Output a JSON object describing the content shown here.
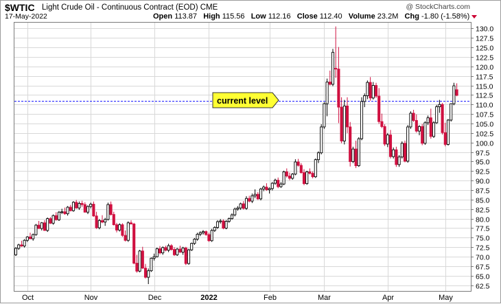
{
  "header": {
    "symbol": "$WTIC",
    "description": "Light Crude Oil - Continuous Contract (EOD)",
    "exchange": "CME",
    "date": "17-May-2022",
    "copyright": "@ StockCharts.com",
    "open_label": "Open",
    "open": "113.87",
    "high_label": "High",
    "high": "115.56",
    "low_label": "Low",
    "low": "112.16",
    "close_label": "Close",
    "close": "112.40",
    "volume_label": "Volume",
    "volume": "23.2M",
    "chg_label": "Chg",
    "chg": "-1.80 (-1.58%)",
    "chg_icon": "down-triangle-icon"
  },
  "annotation": {
    "label": "current level",
    "value": 111
  },
  "colors": {
    "up": "#000000",
    "down": "#d01040",
    "reference_line": "#1a1aff",
    "callout_fill": "#ffff33",
    "grid": "#d8d8d8",
    "chg_down": "#cc0033"
  },
  "chart_data": {
    "type": "candlestick",
    "title": "Light Crude Oil - Continuous Contract (EOD)",
    "ylim": [
      61,
      131.5
    ],
    "y_axis_position": "right",
    "y_ticks": [
      62.5,
      65,
      67.5,
      70,
      72.5,
      75,
      77.5,
      80,
      82.5,
      85,
      87.5,
      90,
      92.5,
      95,
      97.5,
      100,
      102.5,
      105,
      107.5,
      110,
      112.5,
      115,
      117.5,
      120,
      122.5,
      125,
      127.5,
      130
    ],
    "x_labels": [
      {
        "label": "Oct",
        "index": 4
      },
      {
        "label": "Nov",
        "index": 26
      },
      {
        "label": "Dec",
        "index": 48
      },
      {
        "label": "2022",
        "index": 67
      },
      {
        "label": "Feb",
        "index": 88
      },
      {
        "label": "Mar",
        "index": 107
      },
      {
        "label": "Apr",
        "index": 129
      },
      {
        "label": "May",
        "index": 149
      }
    ],
    "grid": true,
    "reference_line": 111,
    "candles": [
      [
        70.5,
        72.5,
        70.2,
        72.2
      ],
      [
        72.2,
        73.4,
        71.8,
        73.1
      ],
      [
        73.1,
        74.2,
        72.6,
        72.8
      ],
      [
        72.8,
        74.6,
        72.4,
        74.3
      ],
      [
        74.3,
        75.4,
        73.9,
        75.2
      ],
      [
        75.2,
        76.3,
        74.8,
        74.7
      ],
      [
        74.7,
        76.1,
        74.2,
        75.8
      ],
      [
        75.8,
        78.6,
        75.5,
        78.3
      ],
      [
        78.3,
        79.4,
        77.3,
        77.4
      ],
      [
        77.4,
        79.1,
        76.9,
        78.9
      ],
      [
        78.9,
        79.6,
        76.8,
        76.9
      ],
      [
        76.9,
        80.3,
        76.5,
        80.0
      ],
      [
        80.0,
        80.4,
        78.6,
        78.8
      ],
      [
        78.8,
        81.1,
        78.4,
        80.8
      ],
      [
        80.8,
        81.7,
        79.5,
        79.7
      ],
      [
        79.7,
        82.0,
        79.4,
        81.7
      ],
      [
        81.7,
        82.6,
        81.2,
        81.8
      ],
      [
        81.8,
        82.9,
        81.0,
        81.3
      ],
      [
        81.3,
        83.3,
        80.8,
        83.0
      ],
      [
        83.0,
        83.6,
        81.9,
        82.1
      ],
      [
        82.1,
        84.6,
        81.8,
        84.3
      ],
      [
        84.3,
        84.9,
        82.6,
        82.8
      ],
      [
        82.8,
        84.5,
        82.3,
        84.0
      ],
      [
        84.0,
        84.7,
        83.1,
        83.7
      ],
      [
        83.7,
        84.3,
        81.6,
        81.7
      ],
      [
        81.7,
        83.5,
        81.2,
        83.2
      ],
      [
        83.2,
        84.2,
        82.7,
        83.8
      ],
      [
        83.8,
        84.5,
        80.5,
        80.7
      ],
      [
        80.7,
        81.8,
        77.3,
        77.6
      ],
      [
        77.6,
        79.9,
        77.2,
        79.5
      ],
      [
        79.5,
        80.9,
        78.8,
        79.1
      ],
      [
        79.1,
        80.2,
        78.1,
        79.8
      ],
      [
        79.8,
        84.2,
        79.5,
        83.7
      ],
      [
        83.7,
        84.5,
        80.8,
        81.1
      ],
      [
        81.1,
        81.8,
        78.2,
        78.4
      ],
      [
        78.4,
        78.9,
        76.4,
        77.0
      ],
      [
        77.0,
        78.8,
        76.6,
        78.4
      ],
      [
        78.4,
        78.8,
        75.2,
        75.6
      ],
      [
        75.6,
        76.9,
        74.0,
        74.3
      ],
      [
        74.3,
        79.3,
        73.9,
        78.9
      ],
      [
        78.9,
        79.6,
        78.5,
        78.6
      ],
      [
        78.6,
        78.9,
        68.0,
        68.3
      ],
      [
        68.3,
        70.5,
        65.8,
        66.2
      ],
      [
        66.2,
        71.8,
        65.9,
        71.5
      ],
      [
        71.5,
        72.6,
        66.8,
        67.0
      ],
      [
        67.0,
        68.1,
        64.3,
        64.6
      ],
      [
        64.6,
        66.9,
        62.8,
        66.3
      ],
      [
        66.3,
        69.8,
        66.0,
        69.6
      ],
      [
        69.6,
        70.8,
        69.0,
        70.0
      ],
      [
        70.0,
        72.4,
        69.8,
        72.1
      ],
      [
        72.1,
        72.8,
        70.6,
        71.0
      ],
      [
        71.0,
        72.7,
        70.5,
        72.4
      ],
      [
        72.4,
        72.9,
        71.4,
        71.7
      ],
      [
        71.7,
        73.4,
        71.2,
        72.9
      ],
      [
        72.9,
        73.3,
        71.6,
        71.9
      ],
      [
        71.9,
        72.5,
        70.2,
        70.5
      ],
      [
        70.5,
        72.3,
        70.2,
        72.0
      ],
      [
        72.0,
        72.9,
        71.0,
        71.2
      ],
      [
        71.2,
        72.6,
        70.5,
        72.3
      ],
      [
        72.3,
        72.6,
        67.8,
        68.2
      ],
      [
        68.2,
        72.1,
        67.9,
        71.8
      ],
      [
        71.8,
        73.7,
        71.5,
        73.5
      ],
      [
        73.5,
        74.9,
        73.1,
        74.6
      ],
      [
        74.6,
        76.3,
        74.2,
        75.9
      ],
      [
        75.9,
        76.7,
        75.4,
        76.3
      ],
      [
        76.3,
        77.0,
        75.8,
        76.6
      ],
      [
        76.6,
        76.9,
        75.5,
        75.8
      ],
      [
        75.8,
        76.3,
        73.9,
        74.2
      ],
      [
        74.2,
        77.3,
        73.9,
        76.9
      ],
      [
        76.9,
        78.0,
        76.5,
        77.7
      ],
      [
        77.7,
        79.6,
        77.3,
        79.2
      ],
      [
        79.2,
        79.9,
        78.7,
        79.4
      ],
      [
        79.4,
        79.8,
        77.2,
        77.5
      ],
      [
        77.5,
        79.6,
        77.2,
        79.3
      ],
      [
        79.3,
        80.3,
        78.9,
        80.0
      ],
      [
        80.0,
        81.4,
        79.7,
        81.0
      ],
      [
        81.0,
        82.9,
        80.6,
        82.5
      ],
      [
        82.5,
        83.3,
        82.1,
        82.8
      ],
      [
        82.8,
        84.2,
        82.3,
        83.9
      ],
      [
        83.9,
        84.6,
        82.4,
        82.7
      ],
      [
        82.7,
        85.9,
        82.3,
        85.3
      ],
      [
        85.3,
        86.0,
        84.3,
        84.6
      ],
      [
        84.6,
        86.6,
        84.1,
        86.0
      ],
      [
        86.0,
        87.7,
        85.4,
        86.4
      ],
      [
        86.4,
        87.0,
        84.9,
        85.2
      ],
      [
        85.2,
        88.1,
        84.8,
        87.8
      ],
      [
        87.8,
        88.7,
        87.2,
        88.3
      ],
      [
        88.3,
        89.3,
        87.3,
        87.6
      ],
      [
        87.6,
        88.2,
        86.6,
        87.9
      ],
      [
        87.9,
        89.6,
        87.4,
        89.3
      ],
      [
        89.3,
        90.5,
        88.9,
        90.1
      ],
      [
        90.1,
        90.8,
        88.0,
        88.4
      ],
      [
        88.4,
        89.6,
        88.1,
        89.1
      ],
      [
        89.1,
        92.6,
        88.8,
        92.3
      ],
      [
        92.3,
        93.2,
        90.8,
        91.2
      ],
      [
        91.2,
        92.1,
        90.1,
        90.6
      ],
      [
        90.6,
        92.0,
        90.2,
        91.7
      ],
      [
        91.7,
        95.6,
        91.4,
        94.9
      ],
      [
        94.9,
        95.7,
        93.7,
        94.0
      ],
      [
        94.0,
        94.6,
        91.8,
        92.1
      ],
      [
        92.1,
        93.0,
        88.8,
        89.2
      ],
      [
        89.2,
        92.6,
        88.9,
        92.3
      ],
      [
        92.3,
        93.2,
        91.6,
        91.9
      ],
      [
        91.9,
        92.4,
        90.6,
        91.0
      ],
      [
        91.0,
        95.8,
        90.7,
        95.5
      ],
      [
        95.5,
        97.7,
        94.6,
        97.3
      ],
      [
        97.3,
        104.8,
        96.9,
        104.1
      ],
      [
        104.1,
        110.6,
        103.6,
        110.2
      ],
      [
        110.2,
        116.8,
        106.9,
        115.9
      ],
      [
        115.9,
        118.9,
        115.0,
        115.3
      ],
      [
        115.3,
        124.6,
        114.8,
        123.7
      ],
      [
        119.5,
        130.5,
        117.0,
        119.3
      ],
      [
        119.3,
        125.1,
        105.1,
        109.3
      ],
      [
        109.3,
        111.9,
        99.8,
        100.4
      ],
      [
        100.4,
        111.2,
        99.5,
        109.6
      ],
      [
        109.6,
        111.9,
        102.5,
        104.1
      ],
      [
        104.1,
        105.4,
        93.7,
        95.0
      ],
      [
        95.0,
        98.9,
        94.6,
        98.3
      ],
      [
        98.3,
        100.5,
        93.3,
        93.9
      ],
      [
        93.9,
        101.4,
        93.6,
        101.0
      ],
      [
        101.0,
        111.9,
        100.6,
        110.8
      ],
      [
        110.8,
        112.9,
        109.3,
        112.3
      ],
      [
        112.3,
        116.3,
        111.4,
        115.8
      ],
      [
        115.8,
        117.2,
        111.0,
        111.7
      ],
      [
        111.7,
        115.9,
        111.3,
        115.0
      ],
      [
        115.0,
        115.7,
        111.7,
        112.2
      ],
      [
        112.2,
        114.3,
        104.9,
        105.5
      ],
      [
        105.5,
        107.6,
        103.8,
        104.2
      ],
      [
        104.2,
        104.8,
        99.1,
        99.6
      ],
      [
        99.6,
        102.5,
        98.8,
        102.0
      ],
      [
        102.0,
        103.3,
        95.8,
        96.3
      ],
      [
        96.3,
        98.7,
        95.8,
        98.1
      ],
      [
        98.1,
        98.9,
        93.6,
        94.2
      ],
      [
        94.2,
        96.7,
        93.6,
        96.2
      ],
      [
        96.2,
        100.3,
        95.8,
        99.8
      ],
      [
        99.8,
        100.5,
        94.8,
        95.1
      ],
      [
        95.1,
        104.6,
        94.7,
        104.1
      ],
      [
        104.1,
        108.2,
        103.6,
        107.7
      ],
      [
        107.7,
        108.6,
        105.4,
        105.8
      ],
      [
        105.8,
        107.4,
        102.6,
        103.0
      ],
      [
        103.0,
        104.6,
        101.9,
        104.2
      ],
      [
        104.2,
        104.9,
        99.3,
        99.8
      ],
      [
        99.8,
        105.6,
        99.4,
        105.2
      ],
      [
        105.2,
        107.1,
        104.6,
        106.5
      ],
      [
        106.5,
        108.9,
        101.0,
        101.6
      ],
      [
        101.6,
        105.6,
        101.2,
        105.2
      ],
      [
        105.2,
        109.9,
        104.9,
        109.4
      ],
      [
        109.4,
        111.2,
        107.8,
        110.0
      ],
      [
        110.0,
        110.4,
        102.1,
        102.6
      ],
      [
        102.6,
        105.2,
        99.0,
        99.5
      ],
      [
        99.5,
        106.2,
        99.2,
        105.9
      ],
      [
        105.9,
        110.3,
        105.5,
        110.2
      ],
      [
        110.2,
        115.7,
        109.8,
        114.9
      ],
      [
        113.87,
        115.56,
        112.16,
        112.4
      ]
    ]
  }
}
